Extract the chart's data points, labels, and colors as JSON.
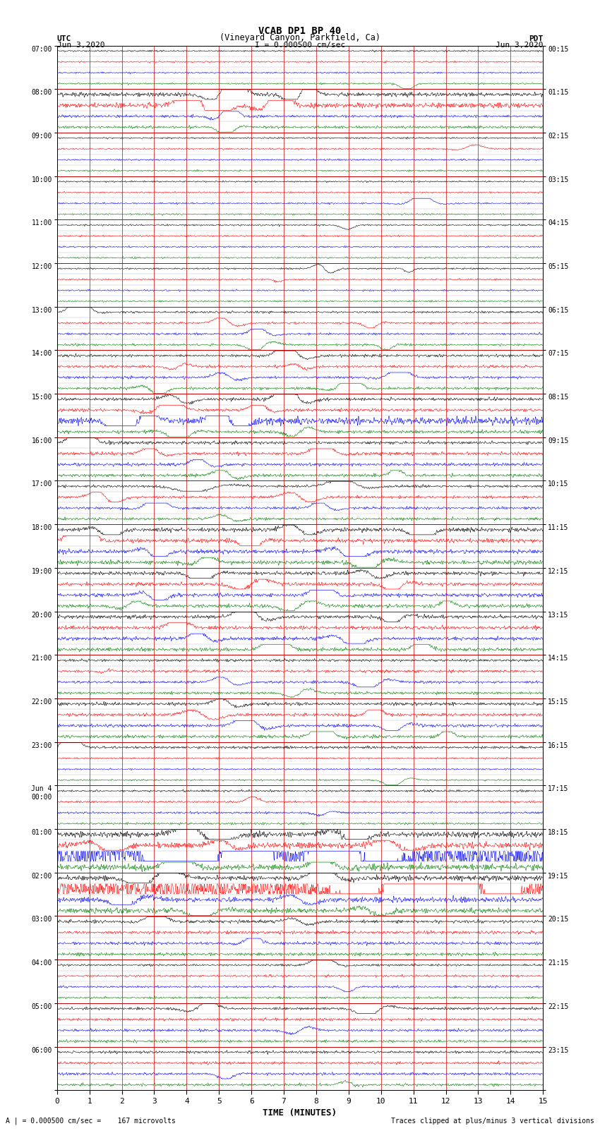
{
  "title_line1": "VCAB DP1 BP 40",
  "title_line2": "(Vineyard Canyon, Parkfield, Ca)",
  "scale_label": "I = 0.000500 cm/sec",
  "utc_label": "UTC",
  "utc_date": "Jun 3,2020",
  "pdt_label": "PDT",
  "pdt_date": "Jun 3,2020",
  "xlabel": "TIME (MINUTES)",
  "bottom_left": "A | = 0.000500 cm/sec =    167 microvolts",
  "bottom_right": "Traces clipped at plus/minus 3 vertical divisions",
  "xmin": 0,
  "xmax": 15,
  "xticks": [
    0,
    1,
    2,
    3,
    4,
    5,
    6,
    7,
    8,
    9,
    10,
    11,
    12,
    13,
    14,
    15
  ],
  "background_color": "#ffffff",
  "trace_colors": [
    "black",
    "red",
    "blue",
    "green"
  ],
  "fig_width": 8.5,
  "fig_height": 16.13,
  "left_times_hourly": [
    "07:00",
    "08:00",
    "09:00",
    "10:00",
    "11:00",
    "12:00",
    "13:00",
    "14:00",
    "15:00",
    "16:00",
    "17:00",
    "18:00",
    "19:00",
    "20:00",
    "21:00",
    "22:00",
    "23:00",
    "Jun 4\n00:00",
    "01:00",
    "02:00",
    "03:00",
    "04:00",
    "05:00",
    "06:00"
  ],
  "right_times_hourly": [
    "00:15",
    "01:15",
    "02:15",
    "03:15",
    "04:15",
    "05:15",
    "06:15",
    "07:15",
    "08:15",
    "09:15",
    "10:15",
    "11:15",
    "12:15",
    "13:15",
    "14:15",
    "15:15",
    "16:15",
    "17:15",
    "18:15",
    "19:15",
    "20:15",
    "21:15",
    "22:15",
    "23:15"
  ],
  "grid_color": "#cc0000",
  "trace_lw": 0.4,
  "num_hours": 24,
  "traces_per_hour": 4
}
